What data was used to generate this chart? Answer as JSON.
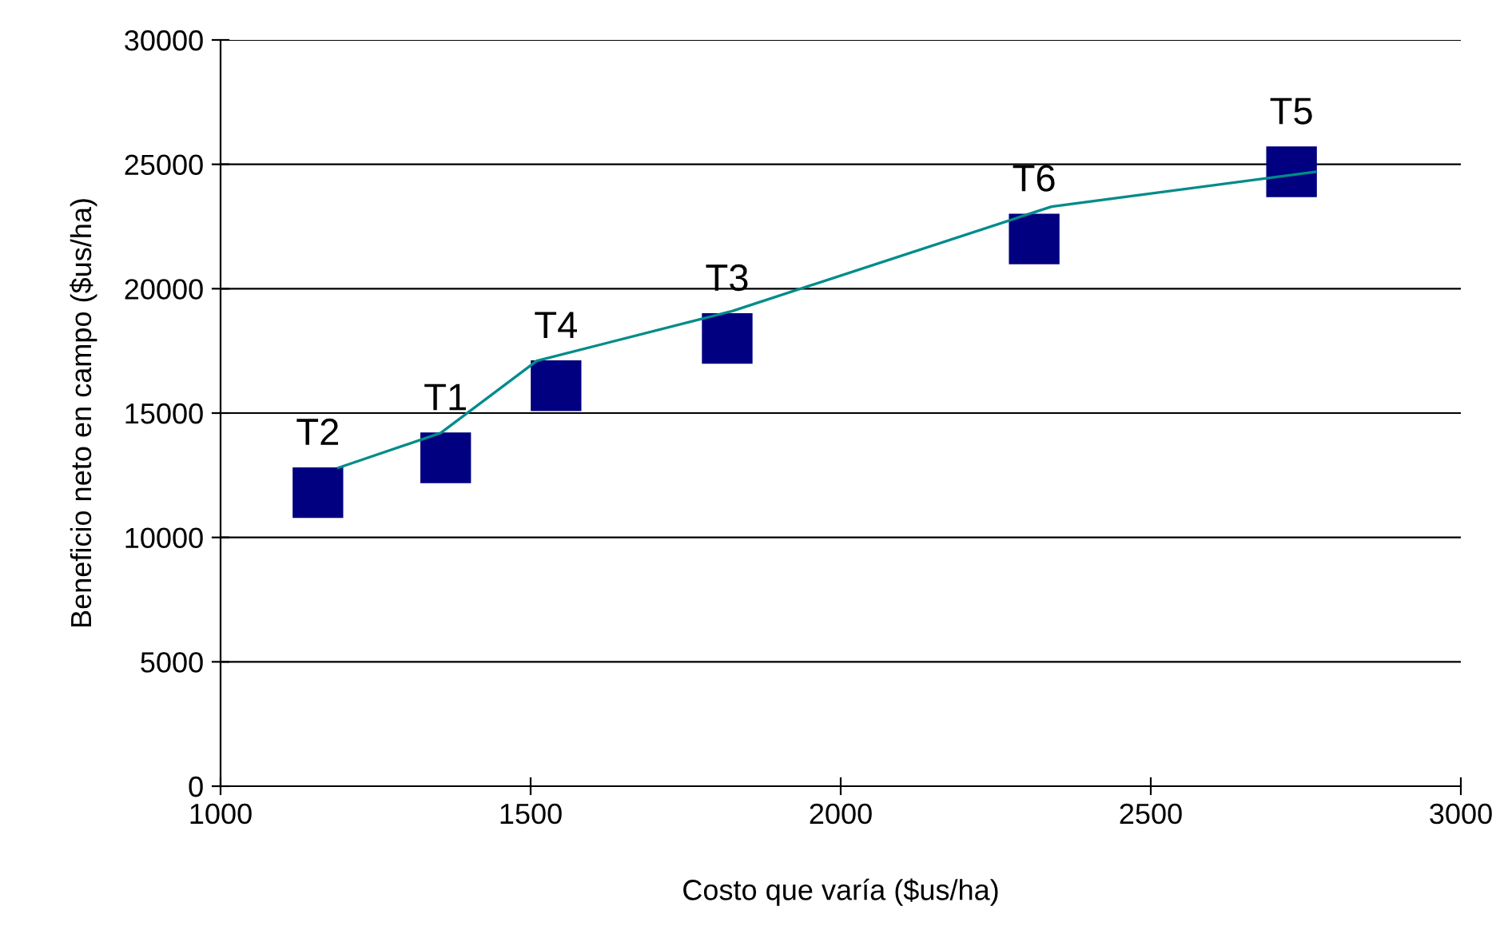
{
  "chart_data": {
    "type": "scatter",
    "xlabel": "Costo que varía ($us/ha)",
    "ylabel": "Beneficio neto en campo ($us/ha)",
    "xlim": [
      1000,
      3000
    ],
    "xticks": [
      1000,
      1500,
      2000,
      2500,
      3000
    ],
    "ylim": [
      0,
      30000
    ],
    "yticks": [
      0,
      5000,
      10000,
      15000,
      20000,
      25000,
      30000
    ],
    "grid": "y",
    "legend": false,
    "series": [
      {
        "type": "line",
        "color": "#008b8b",
        "marker": "none",
        "line_style": "solid",
        "x": [
          1190,
          1355,
          1510,
          1825,
          2340,
          2765
        ],
        "values": [
          12800,
          14200,
          17100,
          19100,
          23300,
          24700
        ]
      },
      {
        "color": "#000080",
        "marker": "square",
        "x": [
          1157,
          1363,
          1541,
          1817,
          2312,
          2727
        ],
        "values": [
          11800,
          13200,
          16100,
          18000,
          22000,
          24700
        ]
      }
    ],
    "annotations": [
      {
        "text": "T2",
        "x": 1157,
        "y": 11800
      },
      {
        "text": "T1",
        "x": 1363,
        "y": 13200
      },
      {
        "text": "T4",
        "x": 1541,
        "y": 16100
      },
      {
        "text": "T3",
        "x": 1817,
        "y": 18000
      },
      {
        "text": "T6",
        "x": 2312,
        "y": 22000
      },
      {
        "text": "T5",
        "x": 2727,
        "y": 24700
      }
    ]
  }
}
